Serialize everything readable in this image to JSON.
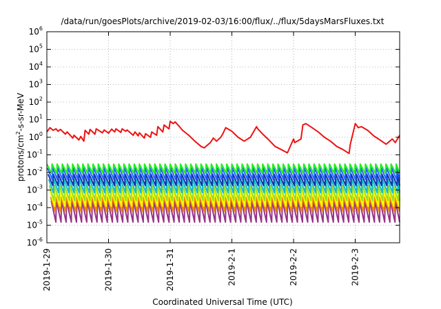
{
  "chart_data": {
    "type": "line",
    "title": "/data/run/goesPlots/archive/2019-02-03/16:00/flux/../flux/5daysMarsFluxes.txt",
    "xlabel": "Coordinated Universal Time (UTC)",
    "ylabel": "protons/cm2-s-sr-MeV",
    "yscale": "log",
    "ylim": [
      1e-06,
      1000000.0
    ],
    "xlim": [
      "2019-01-29 00:00",
      "2019-02-03 16:00"
    ],
    "grid": true,
    "xticks": [
      "2019-1-29",
      "2019-1-30",
      "2019-1-31",
      "2019-2-1",
      "2019-2-2",
      "2019-2-3"
    ],
    "yticks": [
      {
        "base": "10",
        "exp": "-6"
      },
      {
        "base": "10",
        "exp": "-5"
      },
      {
        "base": "10",
        "exp": "-4"
      },
      {
        "base": "10",
        "exp": "-3"
      },
      {
        "base": "10",
        "exp": "-2"
      },
      {
        "base": "10",
        "exp": "-1"
      },
      {
        "base": "10",
        "exp": "0"
      },
      {
        "base": "10",
        "exp": "1"
      },
      {
        "base": "10",
        "exp": "2"
      },
      {
        "base": "10",
        "exp": "3"
      },
      {
        "base": "10",
        "exp": "4"
      },
      {
        "base": "10",
        "exp": "5"
      },
      {
        "base": "10",
        "exp": "6"
      }
    ],
    "series": [
      {
        "color": "#ee1111",
        "days": [
          0.0,
          0.05,
          0.1,
          0.15,
          0.18,
          0.22,
          0.3,
          0.33,
          0.42,
          0.44,
          0.52,
          0.55,
          0.6,
          0.62,
          0.68,
          0.7,
          0.78,
          0.8,
          0.9,
          0.93,
          1.0,
          1.05,
          1.1,
          1.12,
          1.2,
          1.22,
          1.28,
          1.3,
          1.4,
          1.43,
          1.48,
          1.5,
          1.58,
          1.6,
          1.68,
          1.7,
          1.78,
          1.8,
          1.88,
          1.9,
          1.98,
          2.0,
          2.05,
          2.08,
          2.15,
          2.2,
          2.3,
          2.4,
          2.5,
          2.55,
          2.6,
          2.65,
          2.7,
          2.75,
          2.82,
          2.85,
          2.9,
          3.0,
          3.1,
          3.2,
          3.3,
          3.4,
          3.42,
          3.5,
          3.6,
          3.7,
          3.8,
          3.9,
          4.0,
          4.02,
          4.12,
          4.15,
          4.2,
          4.3,
          4.4,
          4.5,
          4.6,
          4.7,
          4.8,
          4.9,
          4.92,
          5.0,
          5.05,
          5.1,
          5.2,
          5.3,
          5.4,
          5.5,
          5.6,
          5.65,
          5.72
        ],
        "values": [
          2.0,
          3.5,
          2.5,
          3.0,
          2.2,
          2.8,
          1.5,
          2.0,
          0.9,
          1.3,
          0.7,
          1.1,
          0.6,
          2.5,
          1.5,
          2.8,
          1.5,
          3.0,
          1.8,
          2.6,
          1.7,
          2.9,
          2.0,
          3.0,
          1.9,
          3.0,
          2.2,
          2.6,
          1.3,
          2.0,
          1.2,
          1.8,
          0.9,
          1.6,
          1.0,
          2.0,
          1.3,
          4.0,
          2.0,
          5.0,
          3.0,
          8.0,
          6.0,
          7.5,
          4.0,
          2.5,
          1.3,
          0.6,
          0.3,
          0.25,
          0.35,
          0.5,
          0.9,
          0.6,
          1.0,
          1.5,
          3.5,
          2.2,
          1.0,
          0.6,
          1.0,
          4.0,
          3.0,
          1.5,
          0.7,
          0.3,
          0.2,
          0.13,
          0.8,
          0.5,
          0.8,
          5.0,
          6.0,
          3.5,
          2.0,
          1.0,
          0.6,
          0.3,
          0.2,
          0.12,
          0.4,
          6.0,
          3.5,
          4.0,
          2.5,
          1.2,
          0.7,
          0.4,
          0.8,
          0.5,
          1.3
        ]
      },
      {
        "color": "#22ee22",
        "saw": {
          "period": 0.0833,
          "low": 0.009,
          "high": 0.03,
          "phase": 0.0
        }
      },
      {
        "color": "#2266ff",
        "saw": {
          "period": 0.0833,
          "low": 0.004,
          "high": 0.018,
          "phase": 0.01
        }
      },
      {
        "color": "#1133aa",
        "saw": {
          "period": 0.0833,
          "low": 0.0018,
          "high": 0.008,
          "phase": 0.02
        }
      },
      {
        "color": "#11bbcc",
        "saw": {
          "period": 0.0833,
          "low": 0.0007,
          "high": 0.004,
          "phase": 0.03
        }
      },
      {
        "color": "#99dd22",
        "saw": {
          "period": 0.0833,
          "low": 0.00025,
          "high": 0.0018,
          "phase": 0.04
        }
      },
      {
        "color": "#ffff00",
        "saw": {
          "period": 0.0833,
          "low": 0.00012,
          "high": 0.0009,
          "phase": 0.05
        }
      },
      {
        "color": "#ee8800",
        "saw": {
          "period": 0.0833,
          "low": 6e-05,
          "high": 0.0004,
          "phase": 0.06
        }
      },
      {
        "color": "#993388",
        "saw": {
          "period": 0.0833,
          "low": 1.5e-05,
          "high": 0.00025,
          "phase": 0.07
        }
      }
    ]
  }
}
